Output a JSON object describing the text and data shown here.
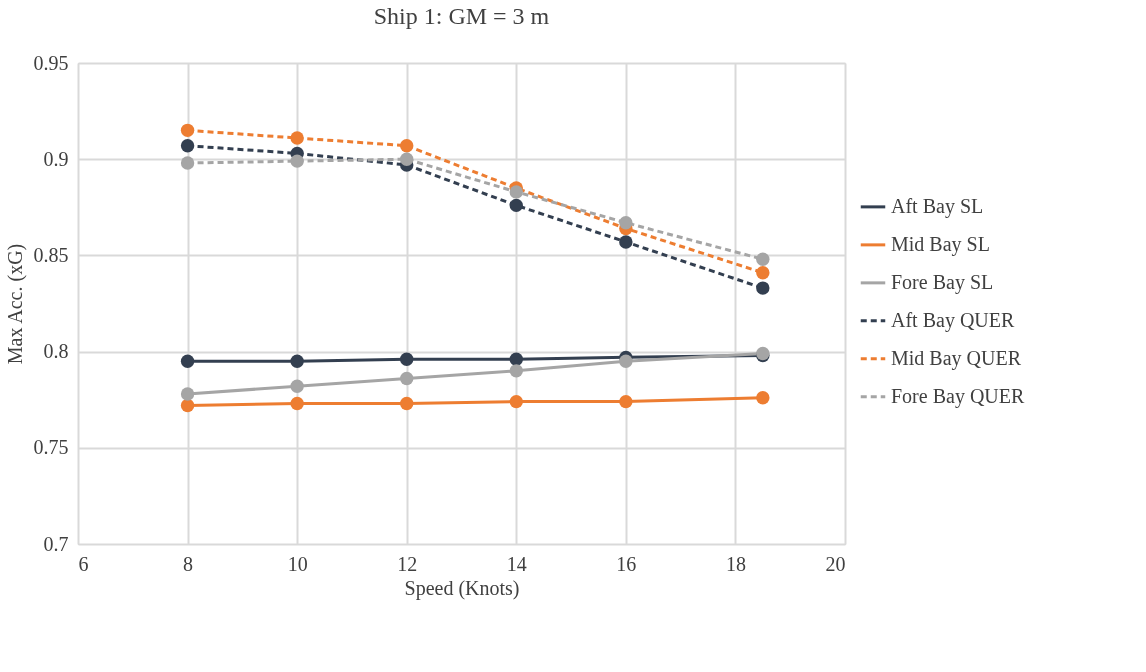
{
  "chart_data": {
    "type": "line",
    "title": "Ship 1: GM = 3 m",
    "xlabel": "Speed (Knots)",
    "ylabel": "Max Acc. (xG)",
    "x": [
      8,
      10,
      12,
      14,
      16,
      18.5
    ],
    "series": [
      {
        "name": "Aft Bay SL",
        "color": "#333f50",
        "line_style": "solid",
        "values": [
          0.795,
          0.795,
          0.796,
          0.796,
          0.797,
          0.798
        ]
      },
      {
        "name": "Mid Bay SL",
        "color": "#ed7d31",
        "line_style": "solid",
        "values": [
          0.772,
          0.773,
          0.773,
          0.774,
          0.774,
          0.776
        ]
      },
      {
        "name": "Fore Bay SL",
        "color": "#a5a5a5",
        "line_style": "solid",
        "values": [
          0.778,
          0.782,
          0.786,
          0.79,
          0.795,
          0.799
        ]
      },
      {
        "name": "Aft Bay QUER",
        "color": "#333f50",
        "line_style": "dashed",
        "values": [
          0.907,
          0.903,
          0.897,
          0.876,
          0.857,
          0.833
        ]
      },
      {
        "name": "Mid Bay QUER",
        "color": "#ed7d31",
        "line_style": "dashed",
        "values": [
          0.915,
          0.911,
          0.907,
          0.885,
          0.864,
          0.841
        ]
      },
      {
        "name": "Fore Bay QUER",
        "color": "#a5a5a5",
        "line_style": "dashed",
        "values": [
          0.898,
          0.899,
          0.9,
          0.883,
          0.867,
          0.848
        ]
      }
    ],
    "xlim": [
      6,
      20
    ],
    "xticks": [
      6,
      8,
      10,
      12,
      14,
      16,
      18,
      20
    ],
    "ylim": [
      0.7,
      0.95
    ],
    "yticks": [
      0.7,
      0.75,
      0.8,
      0.85,
      0.9,
      0.95
    ],
    "grid": true,
    "legend": "right",
    "marker": "circle"
  }
}
